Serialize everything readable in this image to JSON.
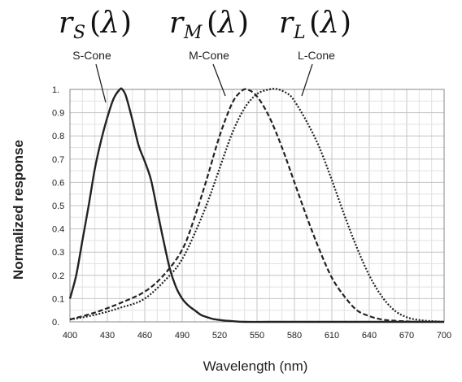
{
  "chart_data": {
    "type": "line",
    "xlabel": "Wavelength (nm)",
    "ylabel": "Normalized response",
    "xlim": [
      400,
      700
    ],
    "ylim": [
      0,
      1
    ],
    "x_ticks": [
      "400",
      "430",
      "460",
      "490",
      "520",
      "550",
      "580",
      "610",
      "640",
      "670",
      "700"
    ],
    "y_ticks": [
      "0.",
      "0.1",
      "0.2",
      "0.3",
      "0.4",
      "0.5",
      "0.6",
      "0.7",
      "0.8",
      "0.9",
      "1."
    ],
    "grid": true,
    "headers": [
      {
        "sym": "r",
        "sub": "S",
        "arg": "λ"
      },
      {
        "sym": "r",
        "sub": "M",
        "arg": "λ"
      },
      {
        "sym": "r",
        "sub": "L",
        "arg": "λ"
      }
    ],
    "series": [
      {
        "name": "S-Cone",
        "style": "solid",
        "x": [
          400,
          405,
          410,
          415,
          420,
          425,
          430,
          435,
          440,
          442,
          445,
          450,
          455,
          460,
          465,
          470,
          475,
          480,
          485,
          490,
          495,
          500,
          505,
          510,
          515,
          520,
          525,
          530,
          540,
          560,
          600,
          650,
          700
        ],
        "y": [
          0.1,
          0.2,
          0.35,
          0.5,
          0.66,
          0.78,
          0.88,
          0.96,
          1.0,
          1.0,
          0.97,
          0.87,
          0.76,
          0.69,
          0.61,
          0.48,
          0.35,
          0.23,
          0.15,
          0.1,
          0.07,
          0.05,
          0.03,
          0.02,
          0.012,
          0.008,
          0.005,
          0.003,
          0.0,
          0.0,
          0.0,
          0.0,
          0.0
        ]
      },
      {
        "name": "M-Cone",
        "style": "dashed",
        "x": [
          400,
          420,
          440,
          460,
          475,
          490,
          500,
          510,
          520,
          530,
          537,
          542,
          550,
          560,
          570,
          580,
          590,
          600,
          610,
          620,
          630,
          640,
          650,
          660,
          670,
          680,
          700
        ],
        "y": [
          0.01,
          0.04,
          0.08,
          0.13,
          0.2,
          0.31,
          0.45,
          0.62,
          0.8,
          0.94,
          0.99,
          1.0,
          0.97,
          0.88,
          0.75,
          0.6,
          0.45,
          0.31,
          0.19,
          0.11,
          0.05,
          0.025,
          0.01,
          0.005,
          0.002,
          0.0,
          0.0
        ]
      },
      {
        "name": "L-Cone",
        "style": "dotted",
        "x": [
          400,
          420,
          440,
          460,
          480,
          490,
          500,
          510,
          520,
          530,
          540,
          550,
          560,
          567,
          575,
          580,
          590,
          600,
          610,
          620,
          630,
          640,
          650,
          660,
          670,
          680,
          690,
          700
        ],
        "y": [
          0.01,
          0.03,
          0.06,
          0.1,
          0.2,
          0.27,
          0.38,
          0.51,
          0.66,
          0.81,
          0.92,
          0.98,
          1.0,
          1.0,
          0.98,
          0.95,
          0.86,
          0.75,
          0.61,
          0.46,
          0.32,
          0.2,
          0.11,
          0.05,
          0.02,
          0.008,
          0.003,
          0.0
        ]
      }
    ]
  }
}
